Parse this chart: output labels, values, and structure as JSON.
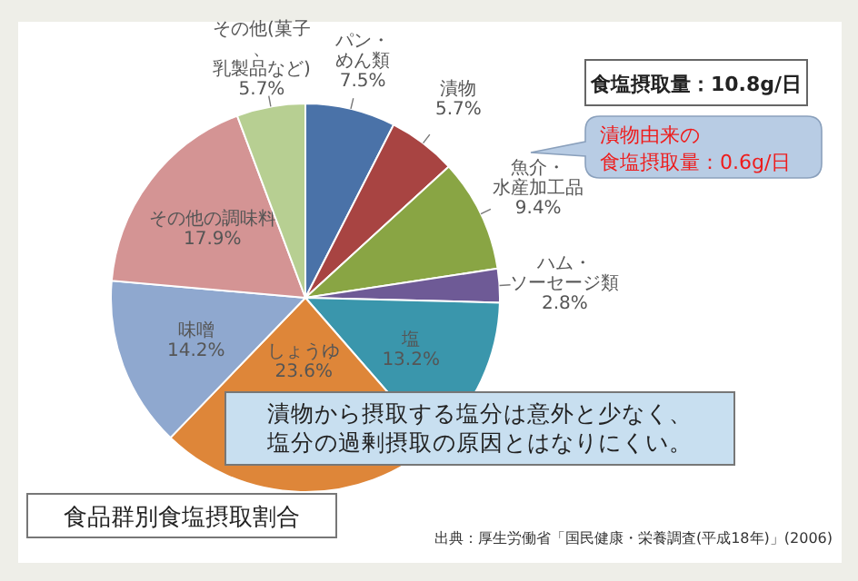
{
  "chart_data": {
    "type": "pie",
    "title": "食品群別食塩摂取割合",
    "categories": [
      "パン・めん類",
      "漬物",
      "魚介・水産加工品",
      "ハム・ソーセージ類",
      "塩",
      "しょうゆ",
      "味噌",
      "その他の調味料",
      "その他(菓子、乳製品など)"
    ],
    "values": [
      7.5,
      5.7,
      9.4,
      2.8,
      13.2,
      23.6,
      14.2,
      17.9,
      5.7
    ],
    "colors": [
      "#4a72a8",
      "#a84442",
      "#89a544",
      "#6e5a96",
      "#3a96ac",
      "#de8639",
      "#8fa8cf",
      "#d49494",
      "#b7cf92"
    ],
    "value_labels": [
      "7.5%",
      "5.7%",
      "9.4%",
      "2.8%",
      "13.2%",
      "23.6%",
      "14.2%",
      "17.9%",
      "5.7%"
    ],
    "annotations": [
      "食塩摂取量：10.8g/日",
      "漬物由来の食塩摂取量：0.6g/日",
      "漬物から摂取する塩分は意外と少なく、塩分の過剰摂取の原因とはなりにくい。",
      "出典：厚生労働省「国民健康・栄養調査(平成18年)」(2006)"
    ]
  }
}
